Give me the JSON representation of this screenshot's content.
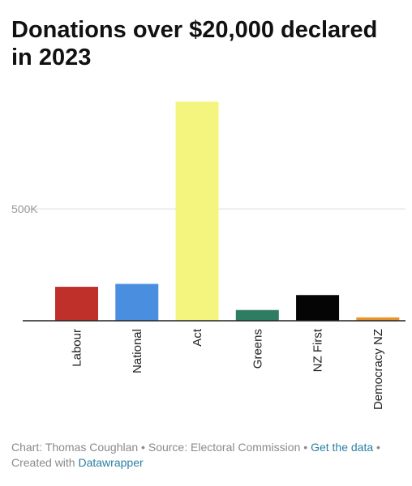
{
  "chart_data": {
    "type": "bar",
    "title": "Donations over $20,000 declared in 2023",
    "categories": [
      "Labour",
      "National",
      "Act",
      "Greens",
      "NZ First",
      "Democracy NZ"
    ],
    "values": [
      152000,
      165000,
      980000,
      48000,
      115000,
      15000
    ],
    "colors": [
      "#c0302a",
      "#4a8fdf",
      "#f4f57e",
      "#2e7d63",
      "#050505",
      "#e8922a"
    ],
    "yticks": [
      {
        "value": 500000,
        "label": "500K"
      }
    ],
    "ylim": [
      0,
      1000000
    ],
    "grid": true
  },
  "footer": {
    "chart_by": "Chart: Thomas Coughlan",
    "sep1": " • ",
    "source": "Source: Electoral Commission",
    "sep2": " • ",
    "get_data": "Get the data",
    "sep3": " • ",
    "created_with": "Created with ",
    "datawrapper": "Datawrapper"
  }
}
